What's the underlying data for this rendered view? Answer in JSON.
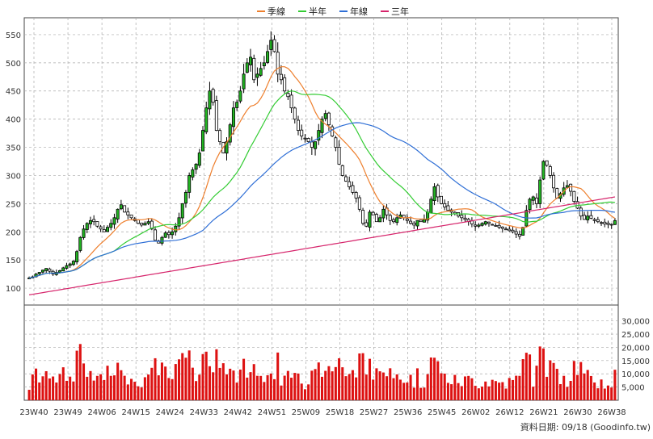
{
  "chart_data": {
    "type": "candlestick",
    "legend": [
      {
        "label": "季線",
        "color": "#ee7f2d"
      },
      {
        "label": "半年",
        "color": "#33cc33"
      },
      {
        "label": "年線",
        "color": "#2f6fd6"
      },
      {
        "label": "三年",
        "color": "#d6246b"
      }
    ],
    "price_axis": {
      "ylim": [
        70,
        580
      ],
      "ticks": [
        100,
        150,
        200,
        250,
        300,
        350,
        400,
        450,
        500,
        550
      ]
    },
    "volume_axis": {
      "ylim": [
        0,
        36000
      ],
      "ticks": [
        "5,000",
        "10,000",
        "15,000",
        "20,000",
        "25,000",
        "30,000"
      ],
      "tick_values": [
        5000,
        10000,
        15000,
        20000,
        25000,
        30000
      ]
    },
    "x_tick_labels": [
      "23W40",
      "23W49",
      "24W06",
      "24W15",
      "24W24",
      "24W33",
      "24W42",
      "24W51",
      "25W09",
      "25W18",
      "25W27",
      "25W36",
      "25W45",
      "26W02",
      "26W12",
      "26W21",
      "26W30",
      "26W38"
    ],
    "footer": "資料日期: 09/18 (Goodinfo.tw)",
    "colors": {
      "up": "#22b522",
      "down": "#ffffff",
      "outline": "#000000",
      "volume": "#dd1111",
      "grid": "#aaaaaa"
    },
    "close": [
      118,
      120,
      125,
      128,
      132,
      135,
      130,
      125,
      128,
      131,
      136,
      140,
      143,
      148,
      165,
      190,
      205,
      215,
      220,
      218,
      210,
      205,
      200,
      208,
      215,
      225,
      240,
      248,
      235,
      230,
      225,
      220,
      215,
      212,
      215,
      218,
      205,
      185,
      180,
      190,
      198,
      195,
      200,
      210,
      225,
      250,
      270,
      300,
      310,
      320,
      340,
      380,
      420,
      450,
      430,
      380,
      360,
      340,
      360,
      390,
      420,
      430,
      450,
      480,
      500,
      510,
      470,
      480,
      490,
      500,
      520,
      540,
      520,
      480,
      470,
      450,
      440,
      420,
      400,
      380,
      370,
      365,
      360,
      350,
      360,
      380,
      400,
      410,
      390,
      370,
      350,
      320,
      300,
      290,
      280,
      270,
      260,
      240,
      215,
      210,
      235,
      230,
      218,
      225,
      240,
      230,
      220,
      218,
      225,
      230,
      225,
      220,
      215,
      212,
      220,
      218,
      222,
      235,
      258,
      280,
      262,
      250,
      244,
      238,
      235,
      232,
      228,
      225,
      222,
      218,
      214,
      210,
      212,
      215,
      218,
      215,
      212,
      210,
      208,
      206,
      204,
      202,
      200,
      196,
      192,
      208,
      238,
      258,
      262,
      250,
      292,
      325,
      318,
      300,
      278,
      260,
      268,
      278,
      282,
      272,
      254,
      242,
      228,
      222,
      228,
      224,
      220,
      218,
      216,
      214,
      213,
      212,
      220
    ]
  }
}
